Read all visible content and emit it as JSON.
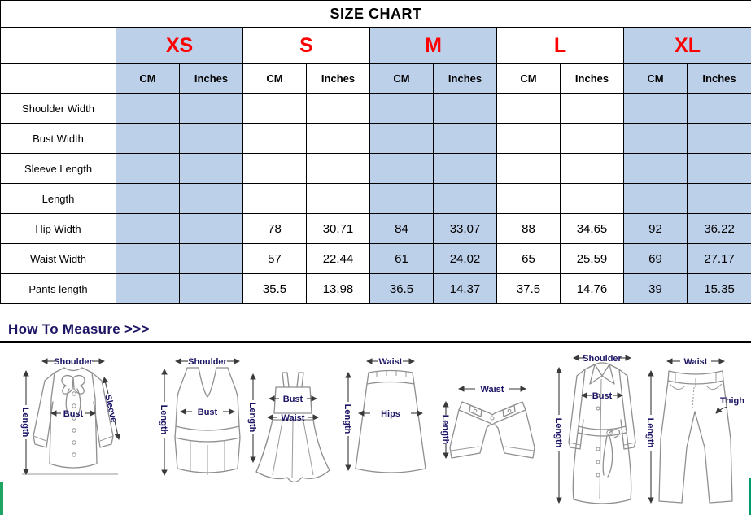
{
  "title": "SIZE CHART",
  "table": {
    "sizes": [
      "XS",
      "S",
      "M",
      "L",
      "XL"
    ],
    "unit_headers": [
      "CM",
      "Inches"
    ],
    "rows": [
      {
        "label": "Shoulder Width",
        "values": [
          "",
          "",
          "",
          "",
          "",
          "",
          "",
          "",
          "",
          ""
        ]
      },
      {
        "label": "Bust Width",
        "values": [
          "",
          "",
          "",
          "",
          "",
          "",
          "",
          "",
          "",
          ""
        ]
      },
      {
        "label": "Sleeve Length",
        "values": [
          "",
          "",
          "",
          "",
          "",
          "",
          "",
          "",
          "",
          ""
        ]
      },
      {
        "label": "Length",
        "values": [
          "",
          "",
          "",
          "",
          "",
          "",
          "",
          "",
          "",
          ""
        ]
      },
      {
        "label": "Hip Width",
        "values": [
          "",
          "",
          "78",
          "30.71",
          "84",
          "33.07",
          "88",
          "34.65",
          "92",
          "36.22"
        ]
      },
      {
        "label": "Waist Width",
        "values": [
          "",
          "",
          "57",
          "22.44",
          "61",
          "24.02",
          "65",
          "25.59",
          "69",
          "27.17"
        ]
      },
      {
        "label": "Pants length",
        "values": [
          "",
          "",
          "35.5",
          "13.98",
          "36.5",
          "14.37",
          "37.5",
          "14.76",
          "39",
          "15.35"
        ]
      }
    ]
  },
  "measure": {
    "heading": "How To Measure >>>",
    "figures": [
      {
        "name": "blouse",
        "labels": {
          "shoulder": "Shoulder",
          "length": "Length",
          "bust": "Bust",
          "sleeve": "Sleeve"
        }
      },
      {
        "name": "tank-top",
        "labels": {
          "shoulder": "Shoulder",
          "length": "Length",
          "bust": "Bust"
        }
      },
      {
        "name": "dress",
        "labels": {
          "length": "Length",
          "bust": "Bust",
          "waist": "Waist"
        }
      },
      {
        "name": "skirt",
        "labels": {
          "waist": "Waist",
          "length": "Length",
          "hips": "Hips"
        }
      },
      {
        "name": "shorts",
        "labels": {
          "waist": "Waist",
          "length": "Length"
        }
      },
      {
        "name": "coat",
        "labels": {
          "shoulder": "Shoulder",
          "length": "Length",
          "bust": "Bust"
        }
      },
      {
        "name": "pants",
        "labels": {
          "waist": "Waist",
          "length": "Length",
          "thigh": "Thigh"
        }
      }
    ]
  },
  "colors": {
    "cell_blue": "#bdd0ea",
    "size_label_red": "#ff0000",
    "heading_navy": "#1b1464",
    "figure_line_gray": "#8f8f8f",
    "divider_black": "#000000",
    "edge_strip_green_left": "#1fa463",
    "edge_strip_green_right": "#009a70"
  }
}
